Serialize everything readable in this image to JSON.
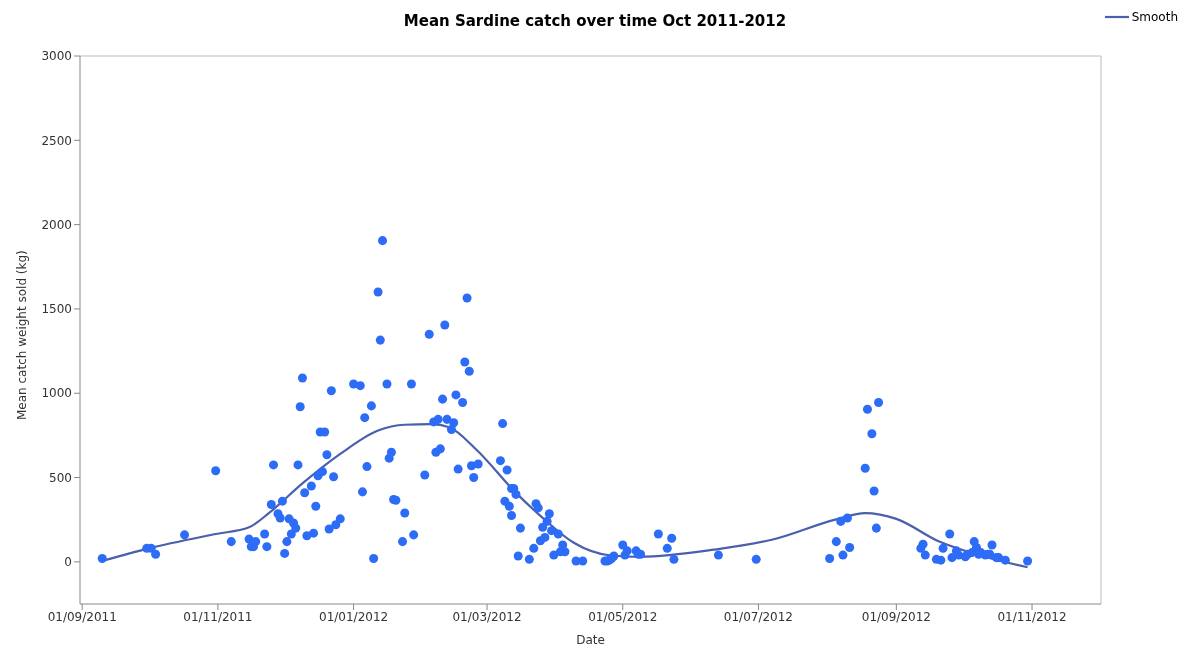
{
  "chart_data": {
    "type": "scatter",
    "title": "Mean Sardine catch over time Oct 2011-2012",
    "xlabel": "Date",
    "ylabel": "Mean catch weight sold (kg)",
    "xlim": [
      "2011-08-31",
      "2012-12-02"
    ],
    "ylim": [
      -250,
      3000
    ],
    "xticks": [
      {
        "value": "2011-09-01",
        "label": "01/09/2011"
      },
      {
        "value": "2011-11-01",
        "label": "01/11/2011"
      },
      {
        "value": "2012-01-01",
        "label": "01/01/2012"
      },
      {
        "value": "2012-03-01",
        "label": "01/03/2012"
      },
      {
        "value": "2012-05-01",
        "label": "01/05/2012"
      },
      {
        "value": "2012-07-01",
        "label": "01/07/2012"
      },
      {
        "value": "2012-09-01",
        "label": "01/09/2012"
      },
      {
        "value": "2012-11-01",
        "label": "01/11/2012"
      }
    ],
    "yticks": [
      0,
      500,
      1000,
      1500,
      2000,
      2500,
      3000
    ],
    "grid": false,
    "legend": "top right",
    "marker": "circle",
    "series": [
      {
        "color": "#2d6cf6",
        "x": [
          "2011-09-10",
          "2011-09-30",
          "2011-10-02",
          "2011-10-04",
          "2011-10-17",
          "2011-10-31",
          "2011-11-07",
          "2011-11-15",
          "2011-11-16",
          "2011-11-17",
          "2011-11-18",
          "2011-11-22",
          "2011-11-23",
          "2011-11-25",
          "2011-11-26",
          "2011-11-28",
          "2011-11-29",
          "2011-11-30",
          "2011-12-01",
          "2011-12-02",
          "2011-12-03",
          "2011-12-04",
          "2011-12-05",
          "2011-12-06",
          "2011-12-07",
          "2011-12-08",
          "2011-12-09",
          "2011-12-10",
          "2011-12-11",
          "2011-12-13",
          "2011-12-14",
          "2011-12-15",
          "2011-12-16",
          "2011-12-17",
          "2011-12-18",
          "2011-12-19",
          "2011-12-20",
          "2011-12-21",
          "2011-12-22",
          "2011-12-23",
          "2011-12-24",
          "2011-12-26",
          "2012-01-01",
          "2012-01-04",
          "2012-01-05",
          "2012-01-06",
          "2012-01-07",
          "2012-01-09",
          "2012-01-10",
          "2012-01-12",
          "2012-01-13",
          "2012-01-14",
          "2012-01-16",
          "2012-01-17",
          "2012-01-18",
          "2012-01-19",
          "2012-01-20",
          "2012-01-23",
          "2012-01-24",
          "2012-01-27",
          "2012-01-28",
          "2012-02-02",
          "2012-02-04",
          "2012-02-06",
          "2012-02-07",
          "2012-02-08",
          "2012-02-09",
          "2012-02-10",
          "2012-02-11",
          "2012-02-12",
          "2012-02-14",
          "2012-02-15",
          "2012-02-16",
          "2012-02-17",
          "2012-02-19",
          "2012-02-20",
          "2012-02-21",
          "2012-02-22",
          "2012-02-23",
          "2012-02-24",
          "2012-02-26",
          "2012-03-07",
          "2012-03-08",
          "2012-03-09",
          "2012-03-10",
          "2012-03-11",
          "2012-03-12",
          "2012-03-12",
          "2012-03-13",
          "2012-03-14",
          "2012-03-15",
          "2012-03-16",
          "2012-03-20",
          "2012-03-22",
          "2012-03-23",
          "2012-03-24",
          "2012-03-25",
          "2012-03-26",
          "2012-03-27",
          "2012-03-28",
          "2012-03-29",
          "2012-03-30",
          "2012-03-31",
          "2012-04-02",
          "2012-04-03",
          "2012-04-04",
          "2012-04-05",
          "2012-04-10",
          "2012-04-13",
          "2012-04-23",
          "2012-04-24",
          "2012-04-25",
          "2012-04-26",
          "2012-04-27",
          "2012-05-01",
          "2012-05-02",
          "2012-05-03",
          "2012-05-07",
          "2012-05-08",
          "2012-05-09",
          "2012-05-17",
          "2012-05-21",
          "2012-05-23",
          "2012-05-24",
          "2012-06-13",
          "2012-06-30",
          "2012-08-02",
          "2012-08-05",
          "2012-08-07",
          "2012-08-08",
          "2012-08-10",
          "2012-08-11",
          "2012-08-18",
          "2012-08-19",
          "2012-08-21",
          "2012-08-22",
          "2012-08-23",
          "2012-08-24",
          "2012-09-12",
          "2012-09-13",
          "2012-09-14",
          "2012-09-19",
          "2012-09-21",
          "2012-09-22",
          "2012-09-25",
          "2012-09-26",
          "2012-09-28",
          "2012-09-29",
          "2012-10-02",
          "2012-10-03",
          "2012-10-05",
          "2012-10-06",
          "2012-10-07",
          "2012-10-08",
          "2012-10-09",
          "2012-10-11",
          "2012-10-12",
          "2012-10-13",
          "2012-10-14",
          "2012-10-16",
          "2012-10-17",
          "2012-10-20",
          "2012-10-30"
        ],
        "values": [
          20,
          80,
          80,
          45,
          160,
          540,
          120,
          135,
          90,
          90,
          120,
          165,
          90,
          340,
          575,
          285,
          260,
          360,
          50,
          120,
          255,
          165,
          230,
          200,
          575,
          920,
          1090,
          410,
          155,
          450,
          170,
          330,
          510,
          770,
          535,
          770,
          635,
          195,
          1015,
          505,
          220,
          255,
          1055,
          1045,
          415,
          855,
          565,
          925,
          20,
          1600,
          1315,
          1905,
          1055,
          615,
          650,
          370,
          365,
          120,
          290,
          1055,
          160,
          515,
          1350,
          830,
          650,
          845,
          670,
          965,
          1405,
          845,
          785,
          825,
          990,
          550,
          945,
          1185,
          1565,
          1130,
          570,
          500,
          580,
          600,
          820,
          360,
          545,
          330,
          275,
          435,
          435,
          400,
          35,
          200,
          15,
          80,
          345,
          320,
          125,
          205,
          145,
          240,
          285,
          185,
          40,
          165,
          60,
          100,
          60,
          5,
          5,
          5,
          5,
          10,
          20,
          35,
          100,
          40,
          65,
          65,
          45,
          45,
          165,
          80,
          140,
          15,
          40,
          15,
          20,
          120,
          240,
          40,
          260,
          85,
          555,
          905,
          760,
          420,
          200,
          945,
          80,
          105,
          40,
          15,
          10,
          80,
          165,
          25,
          65,
          40,
          30,
          45,
          55,
          120,
          85,
          45,
          55,
          40,
          45,
          45,
          100,
          25,
          25,
          10,
          5
        ]
      },
      {
        "type": "line",
        "name": "Smooth",
        "color": "#4a5fad",
        "marker": "none",
        "x": [
          "2011-09-10",
          "2011-10-01",
          "2011-10-31",
          "2011-11-15",
          "2011-11-24",
          "2011-12-09",
          "2011-12-26",
          "2012-01-12",
          "2012-01-24",
          "2012-02-05",
          "2012-02-13",
          "2012-02-25",
          "2012-03-14",
          "2012-03-26",
          "2012-04-09",
          "2012-04-25",
          "2012-05-09",
          "2012-06-11",
          "2012-07-07",
          "2012-08-05",
          "2012-08-18",
          "2012-09-01",
          "2012-09-20",
          "2012-10-06",
          "2012-10-30"
        ],
        "values": [
          5,
          80,
          165,
          205,
          290,
          465,
          640,
          779,
          813,
          817,
          798,
          668,
          409,
          261,
          113,
          39,
          30,
          72,
          131,
          252,
          289,
          255,
          122,
          48,
          -32
        ]
      }
    ]
  }
}
